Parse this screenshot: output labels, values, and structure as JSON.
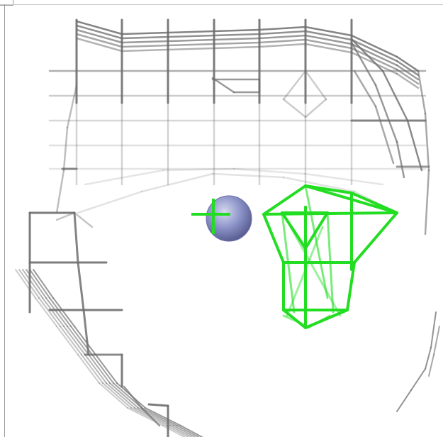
{
  "viewer": {
    "background_color": "#ffffff",
    "map_mesh_color": "#6e6e6e",
    "ligand_color": "#22dd22",
    "atom_color": "#8c93c8",
    "atom_crosshair_color": "#22dd22"
  },
  "icons": {
    "atom_sphere": "sphere-icon",
    "crosshair": "crosshair-icon"
  }
}
